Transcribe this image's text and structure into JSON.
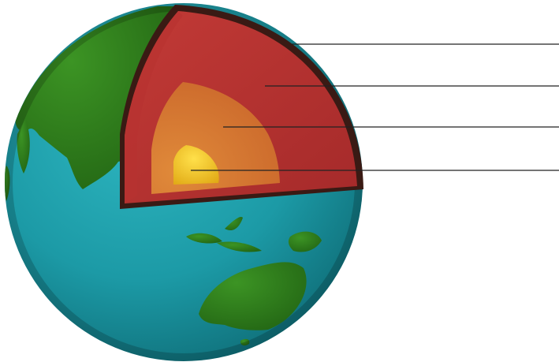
{
  "diagram": {
    "subject": "earth-cross-section",
    "layers": [
      {
        "id": "crust",
        "color": "#3a1a14"
      },
      {
        "id": "mantle",
        "color": "#b22e2e"
      },
      {
        "id": "outer-core",
        "color": "#d9782e"
      },
      {
        "id": "inner-core",
        "color": "#f2c21a"
      }
    ],
    "surface_colors": {
      "ocean": "#1c9aa6",
      "land": "#2f7d1c"
    },
    "leader_lines": [
      {
        "points_to": "crust"
      },
      {
        "points_to": "mantle"
      },
      {
        "points_to": "outer-core"
      },
      {
        "points_to": "inner-core"
      }
    ]
  }
}
